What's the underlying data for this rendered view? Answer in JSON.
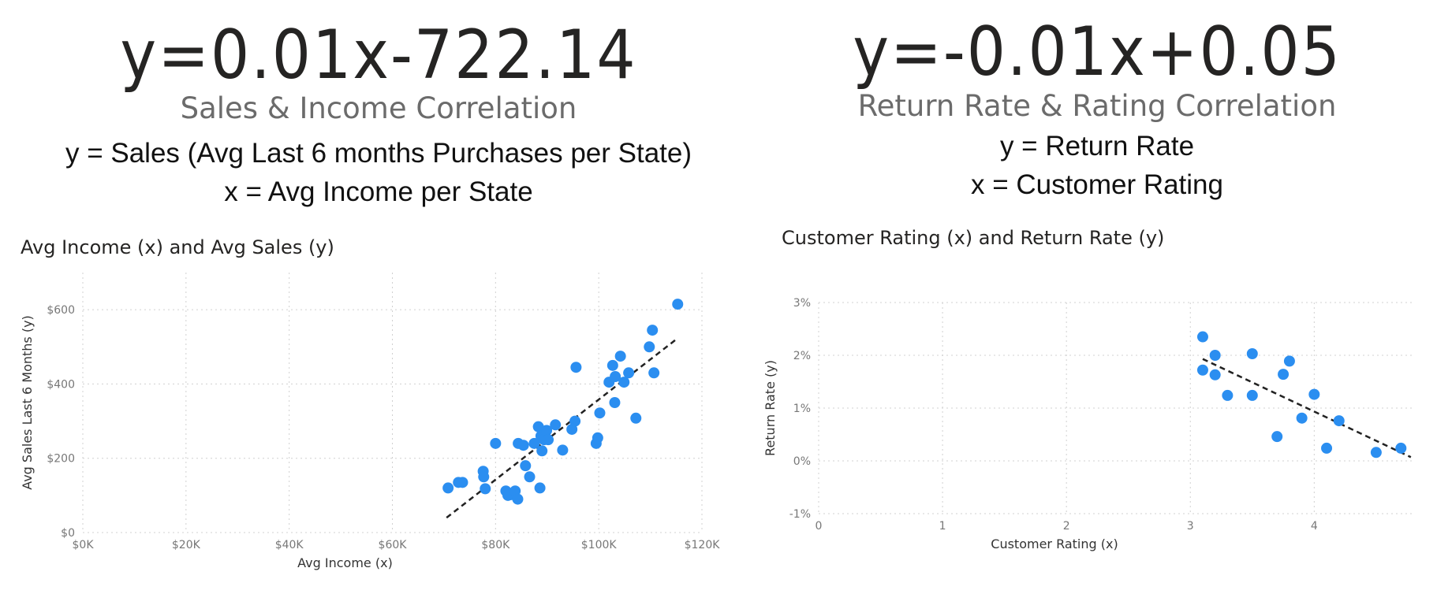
{
  "left": {
    "equation": "y=0.01x-722.14",
    "subtitle": "Sales & Income Correlation",
    "def_y": "y = Sales (Avg Last 6 months Purchases per State)",
    "def_x": "x = Avg Income per State"
  },
  "right": {
    "equation": "y=-0.01x+0.05",
    "subtitle": "Return Rate & Rating Correlation",
    "def_y": "y = Return Rate",
    "def_x": "x = Customer Rating"
  },
  "colors": {
    "point": "#2b8ef0",
    "trendline": "#222222"
  },
  "chart_data": [
    {
      "type": "scatter",
      "title": "Avg Income (x) and Avg Sales (y)",
      "xlabel": "Avg Income (x)",
      "ylabel": "Avg Sales Last 6 Months (y)",
      "xlim": [
        0,
        120000
      ],
      "ylim": [
        0,
        700
      ],
      "x_ticks": [
        0,
        20000,
        40000,
        60000,
        80000,
        100000,
        120000
      ],
      "x_tick_labels": [
        "$0K",
        "$20K",
        "$40K",
        "$60K",
        "$80K",
        "$100K",
        "$120K"
      ],
      "y_ticks": [
        0,
        200,
        400,
        600
      ],
      "y_tick_labels": [
        "$0",
        "$200",
        "$400",
        "$600"
      ],
      "grid": true,
      "trendline": {
        "x": [
          70500,
          115000
        ],
        "y": [
          40,
          520
        ]
      },
      "points": [
        [
          70800,
          120
        ],
        [
          72800,
          135
        ],
        [
          73600,
          135
        ],
        [
          77600,
          165
        ],
        [
          77700,
          150
        ],
        [
          78000,
          118
        ],
        [
          80000,
          240
        ],
        [
          82000,
          112
        ],
        [
          82400,
          100
        ],
        [
          83000,
          102
        ],
        [
          83800,
          112
        ],
        [
          84300,
          90
        ],
        [
          84400,
          240
        ],
        [
          85400,
          235
        ],
        [
          85800,
          180
        ],
        [
          86600,
          150
        ],
        [
          87500,
          240
        ],
        [
          88300,
          285
        ],
        [
          88600,
          120
        ],
        [
          88800,
          260
        ],
        [
          89000,
          220
        ],
        [
          89400,
          250
        ],
        [
          89900,
          275
        ],
        [
          90200,
          250
        ],
        [
          91600,
          290
        ],
        [
          93000,
          222
        ],
        [
          94800,
          278
        ],
        [
          95400,
          300
        ],
        [
          95600,
          445
        ],
        [
          99500,
          240
        ],
        [
          99800,
          255
        ],
        [
          100200,
          322
        ],
        [
          102000,
          405
        ],
        [
          102700,
          450
        ],
        [
          103100,
          350
        ],
        [
          103200,
          420
        ],
        [
          104200,
          475
        ],
        [
          104900,
          405
        ],
        [
          105800,
          430
        ],
        [
          107200,
          308
        ],
        [
          109800,
          500
        ],
        [
          110400,
          545
        ],
        [
          110700,
          430
        ],
        [
          115300,
          615
        ]
      ]
    },
    {
      "type": "scatter",
      "title": "Customer Rating (x) and Return Rate (y)",
      "xlabel": "Customer Rating (x)",
      "ylabel": "Return Rate (y)",
      "xlim": [
        0,
        4.8
      ],
      "ylim": [
        -0.01,
        0.03
      ],
      "x_ticks": [
        0,
        1,
        2,
        3,
        4
      ],
      "x_tick_labels": [
        "0",
        "1",
        "2",
        "3",
        "4"
      ],
      "y_ticks": [
        -0.01,
        0,
        0.01,
        0.02,
        0.03
      ],
      "y_tick_labels": [
        "-1%",
        "0%",
        "1%",
        "2%",
        "3%"
      ],
      "grid": true,
      "trendline": {
        "x": [
          3.1,
          4.78
        ],
        "y": [
          0.0193,
          0.0007
        ]
      },
      "points": [
        [
          3.1,
          0.0235
        ],
        [
          3.1,
          0.0172
        ],
        [
          3.2,
          0.02
        ],
        [
          3.2,
          0.0163
        ],
        [
          3.3,
          0.0124
        ],
        [
          3.5,
          0.0203
        ],
        [
          3.5,
          0.0124
        ],
        [
          3.7,
          0.0046
        ],
        [
          3.75,
          0.0164
        ],
        [
          3.8,
          0.0189
        ],
        [
          3.9,
          0.0081
        ],
        [
          4.0,
          0.0126
        ],
        [
          4.1,
          0.0024
        ],
        [
          4.2,
          0.0076
        ],
        [
          4.5,
          0.0016
        ],
        [
          4.7,
          0.0024
        ]
      ]
    }
  ]
}
